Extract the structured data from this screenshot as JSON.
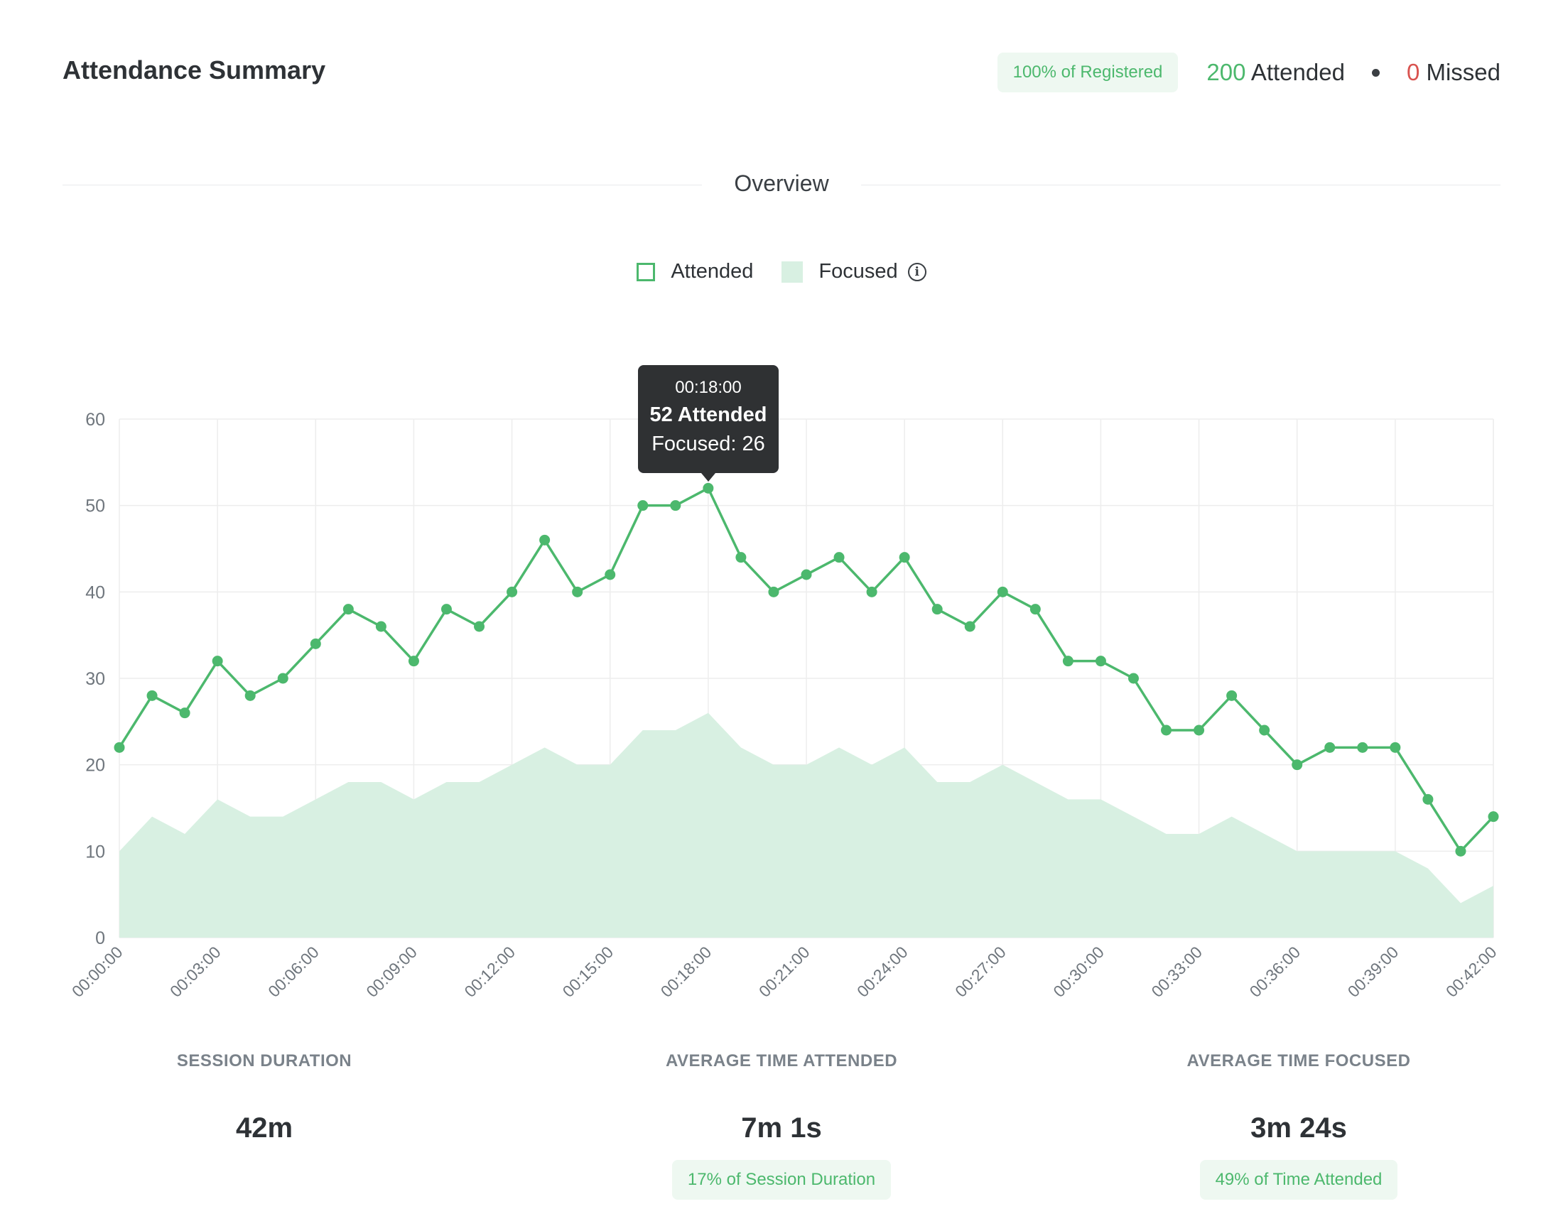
{
  "header": {
    "title": "Attendance Summary",
    "registered_pill": "100% of Registered",
    "attended_count": "200",
    "attended_label": "Attended",
    "missed_count": "0",
    "missed_label": "Missed"
  },
  "overview": {
    "label": "Overview"
  },
  "legend": {
    "attended": "Attended",
    "focused": "Focused",
    "info_icon": "info-icon"
  },
  "tooltip": {
    "time": "00:18:00",
    "attended": "52 Attended",
    "focused": "Focused: 26"
  },
  "stats": [
    {
      "label": "SESSION DURATION",
      "value": "42m",
      "pill": ""
    },
    {
      "label": "AVERAGE TIME ATTENDED",
      "value": "7m 1s",
      "pill": "17% of Session Duration"
    },
    {
      "label": "AVERAGE TIME FOCUSED",
      "value": "3m 24s",
      "pill": "49% of Time Attended"
    }
  ],
  "colors": {
    "accent": "#4cb86d",
    "focused_fill": "#d8f0e2",
    "missed": "#d9534f",
    "tooltip_bg": "#2f3133"
  },
  "chart_data": {
    "type": "line",
    "x": [
      "00:00:00",
      "00:01:00",
      "00:02:00",
      "00:03:00",
      "00:04:00",
      "00:05:00",
      "00:06:00",
      "00:07:00",
      "00:08:00",
      "00:09:00",
      "00:10:00",
      "00:11:00",
      "00:12:00",
      "00:13:00",
      "00:14:00",
      "00:15:00",
      "00:16:00",
      "00:17:00",
      "00:18:00",
      "00:19:00",
      "00:20:00",
      "00:21:00",
      "00:22:00",
      "00:23:00",
      "00:24:00",
      "00:25:00",
      "00:26:00",
      "00:27:00",
      "00:28:00",
      "00:29:00",
      "00:30:00",
      "00:31:00",
      "00:32:00",
      "00:33:00",
      "00:34:00",
      "00:35:00",
      "00:36:00",
      "00:37:00",
      "00:38:00",
      "00:39:00",
      "00:40:00",
      "00:41:00",
      "00:42:00"
    ],
    "x_tick_labels": [
      "00:00:00",
      "00:03:00",
      "00:06:00",
      "00:09:00",
      "00:12:00",
      "00:15:00",
      "00:18:00",
      "00:21:00",
      "00:24:00",
      "00:27:00",
      "00:30:00",
      "00:33:00",
      "00:36:00",
      "00:39:00",
      "00:42:00"
    ],
    "series": [
      {
        "name": "Attended",
        "type": "line",
        "values": [
          22,
          28,
          26,
          32,
          28,
          30,
          34,
          38,
          36,
          32,
          38,
          36,
          40,
          46,
          40,
          42,
          50,
          50,
          52,
          44,
          40,
          42,
          44,
          40,
          44,
          38,
          36,
          40,
          38,
          32,
          32,
          30,
          24,
          24,
          28,
          24,
          20,
          22,
          22,
          22,
          16,
          10,
          14
        ]
      },
      {
        "name": "Focused",
        "type": "area",
        "values": [
          10,
          14,
          12,
          16,
          14,
          14,
          16,
          18,
          18,
          16,
          18,
          18,
          20,
          22,
          20,
          20,
          24,
          24,
          26,
          22,
          20,
          20,
          22,
          20,
          22,
          18,
          18,
          20,
          18,
          16,
          16,
          14,
          12,
          12,
          14,
          12,
          10,
          10,
          10,
          10,
          8,
          4,
          6
        ]
      }
    ],
    "y_ticks": [
      "0",
      "10",
      "20",
      "30",
      "40",
      "50",
      "60"
    ],
    "ylim": [
      0,
      60
    ],
    "grid": true,
    "legend": "top-center"
  }
}
